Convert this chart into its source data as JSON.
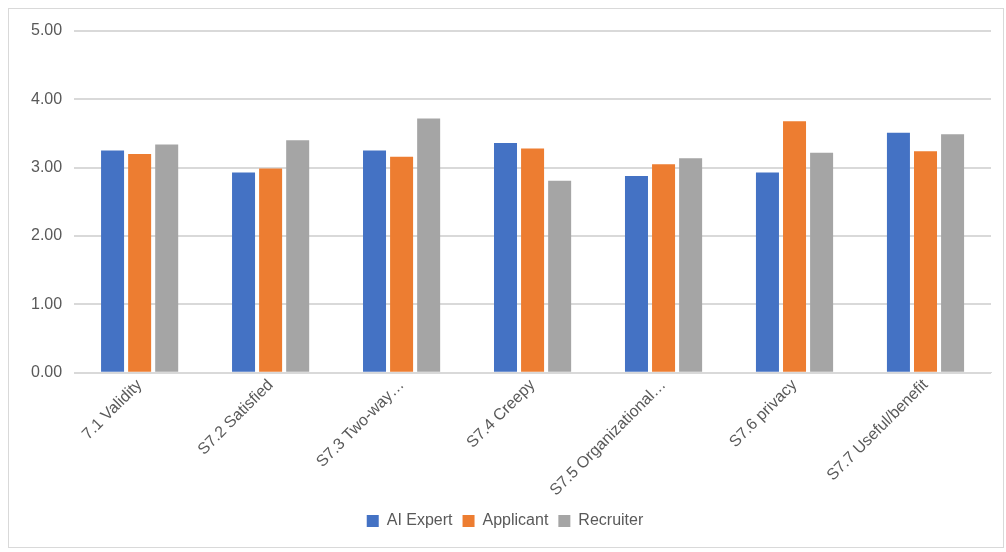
{
  "chart_data": {
    "type": "bar",
    "categories": [
      "7.1 Validity",
      "S7.2 Satisfied",
      "S7.3 Two-way…",
      "S7.4 Creepy",
      "S7.5 Organizational…",
      "S7.6 privacy",
      "S7.7 Useful/benefit"
    ],
    "series": [
      {
        "name": "AI Expert",
        "color": "#4472c4",
        "values": [
          3.25,
          2.93,
          3.25,
          3.36,
          2.88,
          2.93,
          3.51
        ]
      },
      {
        "name": "Applicant",
        "color": "#ed7d31",
        "values": [
          3.2,
          2.99,
          3.16,
          3.28,
          3.05,
          3.68,
          3.24
        ]
      },
      {
        "name": "Recruiter",
        "color": "#a5a5a5",
        "values": [
          3.34,
          3.4,
          3.72,
          2.81,
          3.14,
          3.22,
          3.49
        ]
      }
    ],
    "ylim": [
      0,
      5
    ],
    "yticks": [
      {
        "value": 0,
        "label": "0.00"
      },
      {
        "value": 1,
        "label": "1.00"
      },
      {
        "value": 2,
        "label": "2.00"
      },
      {
        "value": 3,
        "label": "3.00"
      },
      {
        "value": 4,
        "label": "4.00"
      },
      {
        "value": 5,
        "label": "5.00"
      }
    ],
    "grid": "y",
    "legend": "bottom"
  }
}
